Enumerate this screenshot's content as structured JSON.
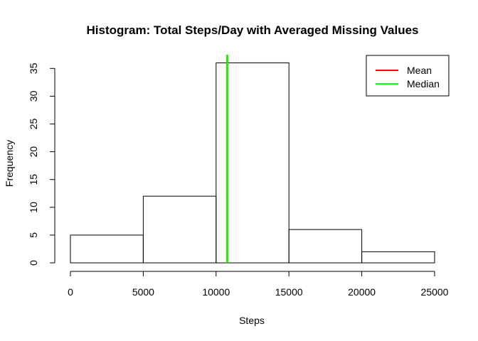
{
  "chart_data": {
    "type": "bar",
    "title": "Histogram: Total Steps/Day with Averaged Missing Values",
    "xlabel": "Steps",
    "ylabel": "Frequency",
    "bins": [
      {
        "from": 0,
        "to": 5000,
        "count": 5
      },
      {
        "from": 5000,
        "to": 10000,
        "count": 12
      },
      {
        "from": 10000,
        "to": 15000,
        "count": 36
      },
      {
        "from": 15000,
        "to": 20000,
        "count": 6
      },
      {
        "from": 20000,
        "to": 25000,
        "count": 2
      }
    ],
    "x_ticks": [
      0,
      5000,
      10000,
      15000,
      20000,
      25000
    ],
    "y_ticks": [
      0,
      5,
      10,
      15,
      20,
      25,
      30,
      35
    ],
    "xlim": [
      0,
      25000
    ],
    "ylim": [
      0,
      36
    ],
    "grid": false,
    "legend_position": "top-right",
    "lines": [
      {
        "name": "Mean",
        "x": 10766,
        "color": "#ff0000"
      },
      {
        "name": "Median",
        "x": 10766,
        "color": "#00ff00"
      }
    ]
  }
}
